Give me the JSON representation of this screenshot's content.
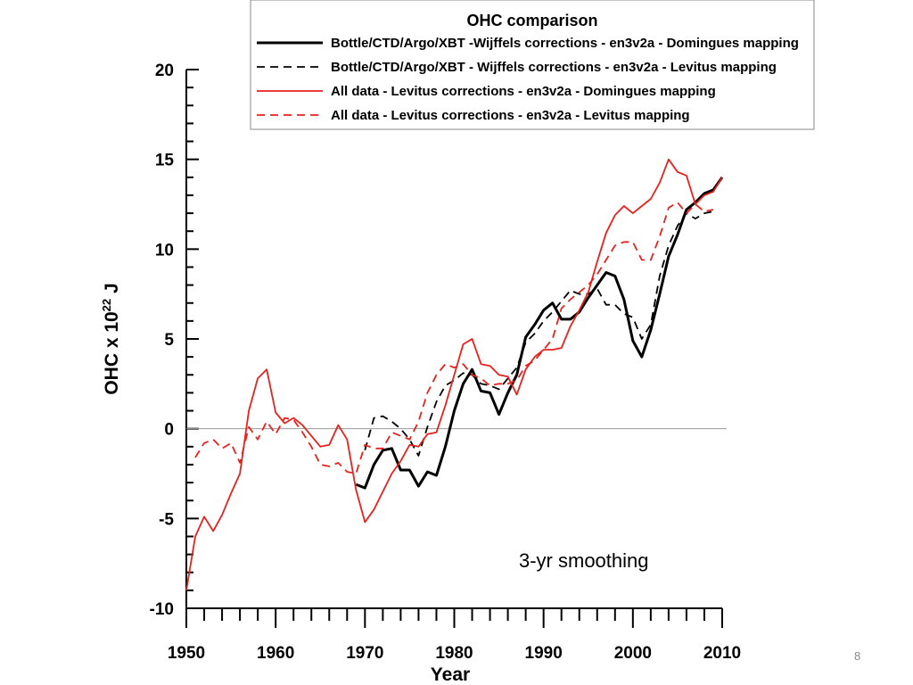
{
  "chart_data": {
    "type": "line",
    "title": "",
    "xlabel": "Year",
    "ylabel_main": "OHC x 10",
    "ylabel_sup": "22",
    "ylabel_unit": " J",
    "xlim": [
      1950,
      2010
    ],
    "ylim": [
      -10,
      20
    ],
    "x_ticks": [
      1950,
      1960,
      1970,
      1980,
      1990,
      2000,
      2010
    ],
    "y_ticks": [
      -10,
      -5,
      0,
      5,
      10,
      15,
      20
    ],
    "zero_line": true,
    "legend": {
      "title": "OHC comparison",
      "placement": "top-right"
    },
    "annotation": "3-yr smoothing",
    "series": [
      {
        "name": "Bottle/CTD/Argo/XBT -Wijffels corrections - en3v2a - Domingues mapping",
        "color": "#000000",
        "style": "solid",
        "points": [
          [
            1969,
            -3.1
          ],
          [
            1970,
            -3.3
          ],
          [
            1971,
            -2.0
          ],
          [
            1972,
            -1.2
          ],
          [
            1973,
            -1.1
          ],
          [
            1974,
            -2.3
          ],
          [
            1975,
            -2.3
          ],
          [
            1976,
            -3.2
          ],
          [
            1977,
            -2.4
          ],
          [
            1978,
            -2.6
          ],
          [
            1979,
            -1.0
          ],
          [
            1980,
            1.0
          ],
          [
            1981,
            2.5
          ],
          [
            1982,
            3.3
          ],
          [
            1983,
            2.1
          ],
          [
            1984,
            2.0
          ],
          [
            1985,
            0.8
          ],
          [
            1986,
            2.0
          ],
          [
            1987,
            3.0
          ],
          [
            1988,
            5.1
          ],
          [
            1989,
            5.8
          ],
          [
            1990,
            6.6
          ],
          [
            1991,
            7.0
          ],
          [
            1992,
            6.1
          ],
          [
            1993,
            6.1
          ],
          [
            1994,
            6.5
          ],
          [
            1995,
            7.3
          ],
          [
            1996,
            8.0
          ],
          [
            1997,
            8.7
          ],
          [
            1998,
            8.5
          ],
          [
            1999,
            7.2
          ],
          [
            2000,
            4.9
          ],
          [
            2001,
            4.0
          ],
          [
            2002,
            5.5
          ],
          [
            2003,
            7.5
          ],
          [
            2004,
            9.6
          ],
          [
            2005,
            10.8
          ],
          [
            2006,
            12.2
          ],
          [
            2007,
            12.6
          ],
          [
            2008,
            13.1
          ],
          [
            2009,
            13.3
          ],
          [
            2010,
            14.0
          ]
        ]
      },
      {
        "name": "Bottle/CTD/Argo/XBT - Wijffels corrections - en3v2a - Levitus mapping",
        "color": "#000000",
        "style": "dashed",
        "points": [
          [
            1970,
            -1.2
          ],
          [
            1971,
            0.6
          ],
          [
            1972,
            0.7
          ],
          [
            1973,
            0.4
          ],
          [
            1974,
            0.0
          ],
          [
            1975,
            -0.6
          ],
          [
            1976,
            -1.5
          ],
          [
            1977,
            0.1
          ],
          [
            1978,
            1.5
          ],
          [
            1979,
            2.4
          ],
          [
            1980,
            2.7
          ],
          [
            1981,
            3.1
          ],
          [
            1982,
            3.0
          ],
          [
            1983,
            2.5
          ],
          [
            1984,
            2.4
          ],
          [
            1985,
            2.2
          ],
          [
            1986,
            2.8
          ],
          [
            1987,
            3.4
          ],
          [
            1988,
            4.8
          ],
          [
            1989,
            5.3
          ],
          [
            1990,
            6.0
          ],
          [
            1991,
            6.5
          ],
          [
            1992,
            7.1
          ],
          [
            1993,
            7.7
          ],
          [
            1994,
            7.5
          ],
          [
            1995,
            7.5
          ],
          [
            1996,
            7.8
          ],
          [
            1997,
            6.9
          ],
          [
            1998,
            6.9
          ],
          [
            1999,
            6.4
          ],
          [
            2000,
            6.2
          ],
          [
            2001,
            5.0
          ],
          [
            2002,
            5.8
          ],
          [
            2003,
            8.5
          ],
          [
            2004,
            10.2
          ],
          [
            2005,
            11.3
          ],
          [
            2006,
            12.0
          ],
          [
            2007,
            11.7
          ],
          [
            2008,
            12.0
          ],
          [
            2009,
            12.1
          ]
        ]
      },
      {
        "name": "All data - Levitus corrections - en3v2a - Domingues mapping",
        "color": "#e8211d",
        "style": "solid",
        "points": [
          [
            1950,
            -9.0
          ],
          [
            1951,
            -6.0
          ],
          [
            1952,
            -4.9
          ],
          [
            1953,
            -5.7
          ],
          [
            1954,
            -4.8
          ],
          [
            1955,
            -3.6
          ],
          [
            1956,
            -2.5
          ],
          [
            1957,
            1.0
          ],
          [
            1958,
            2.8
          ],
          [
            1959,
            3.3
          ],
          [
            1960,
            0.9
          ],
          [
            1961,
            0.3
          ],
          [
            1962,
            0.6
          ],
          [
            1963,
            0.2
          ],
          [
            1964,
            -0.4
          ],
          [
            1965,
            -1.0
          ],
          [
            1966,
            -0.9
          ],
          [
            1967,
            0.2
          ],
          [
            1968,
            -0.6
          ],
          [
            1969,
            -3.4
          ],
          [
            1970,
            -5.2
          ],
          [
            1971,
            -4.5
          ],
          [
            1972,
            -3.5
          ],
          [
            1973,
            -2.5
          ],
          [
            1974,
            -1.8
          ],
          [
            1975,
            -0.9
          ],
          [
            1976,
            -1.0
          ],
          [
            1977,
            -0.3
          ],
          [
            1978,
            -0.2
          ],
          [
            1979,
            1.3
          ],
          [
            1980,
            3.0
          ],
          [
            1981,
            4.7
          ],
          [
            1982,
            5.0
          ],
          [
            1983,
            3.6
          ],
          [
            1984,
            3.5
          ],
          [
            1985,
            3.0
          ],
          [
            1986,
            2.9
          ],
          [
            1987,
            1.9
          ],
          [
            1988,
            3.3
          ],
          [
            1989,
            4.0
          ],
          [
            1990,
            4.4
          ],
          [
            1991,
            4.4
          ],
          [
            1992,
            4.5
          ],
          [
            1993,
            5.7
          ],
          [
            1994,
            6.6
          ],
          [
            1995,
            7.6
          ],
          [
            1996,
            9.3
          ],
          [
            1997,
            10.9
          ],
          [
            1998,
            11.9
          ],
          [
            1999,
            12.4
          ],
          [
            2000,
            12.0
          ],
          [
            2001,
            12.4
          ],
          [
            2002,
            12.8
          ],
          [
            2003,
            13.7
          ],
          [
            2004,
            15.0
          ],
          [
            2005,
            14.3
          ],
          [
            2006,
            14.1
          ],
          [
            2007,
            12.5
          ],
          [
            2008,
            13.0
          ],
          [
            2009,
            13.2
          ],
          [
            2010,
            14.0
          ]
        ]
      },
      {
        "name": "All data - Levitus corrections - en3v2a - Levitus mapping",
        "color": "#e8211d",
        "style": "dashed",
        "points": [
          [
            1951,
            -1.6
          ],
          [
            1952,
            -0.8
          ],
          [
            1953,
            -0.6
          ],
          [
            1954,
            -1.1
          ],
          [
            1955,
            -0.8
          ],
          [
            1956,
            -1.9
          ],
          [
            1957,
            0.1
          ],
          [
            1958,
            -0.6
          ],
          [
            1959,
            0.4
          ],
          [
            1960,
            -0.3
          ],
          [
            1961,
            0.6
          ],
          [
            1962,
            0.5
          ],
          [
            1963,
            -0.2
          ],
          [
            1964,
            -1.0
          ],
          [
            1965,
            -2.0
          ],
          [
            1966,
            -2.1
          ],
          [
            1967,
            -1.9
          ],
          [
            1968,
            -2.4
          ],
          [
            1969,
            -2.5
          ],
          [
            1970,
            -0.9
          ],
          [
            1971,
            -1.1
          ],
          [
            1972,
            -1.1
          ],
          [
            1973,
            -0.2
          ],
          [
            1974,
            -0.4
          ],
          [
            1975,
            -0.6
          ],
          [
            1976,
            0.4
          ],
          [
            1977,
            2.0
          ],
          [
            1978,
            3.0
          ],
          [
            1979,
            3.6
          ],
          [
            1980,
            3.4
          ],
          [
            1981,
            3.6
          ],
          [
            1982,
            3.0
          ],
          [
            1983,
            2.8
          ],
          [
            1984,
            2.4
          ],
          [
            1985,
            2.5
          ],
          [
            1986,
            2.5
          ],
          [
            1987,
            2.7
          ],
          [
            1988,
            3.5
          ],
          [
            1989,
            3.8
          ],
          [
            1990,
            4.4
          ],
          [
            1991,
            5.0
          ],
          [
            1992,
            6.7
          ],
          [
            1993,
            7.2
          ],
          [
            1994,
            7.6
          ],
          [
            1995,
            8.0
          ],
          [
            1996,
            8.6
          ],
          [
            1997,
            9.4
          ],
          [
            1998,
            10.2
          ],
          [
            1999,
            10.4
          ],
          [
            2000,
            10.4
          ],
          [
            2001,
            9.4
          ],
          [
            2002,
            9.4
          ],
          [
            2003,
            10.7
          ],
          [
            2004,
            12.3
          ],
          [
            2005,
            12.6
          ],
          [
            2006,
            12.0
          ],
          [
            2007,
            12.5
          ],
          [
            2008,
            12.1
          ],
          [
            2009,
            12.2
          ]
        ]
      }
    ]
  },
  "page_number": "8"
}
